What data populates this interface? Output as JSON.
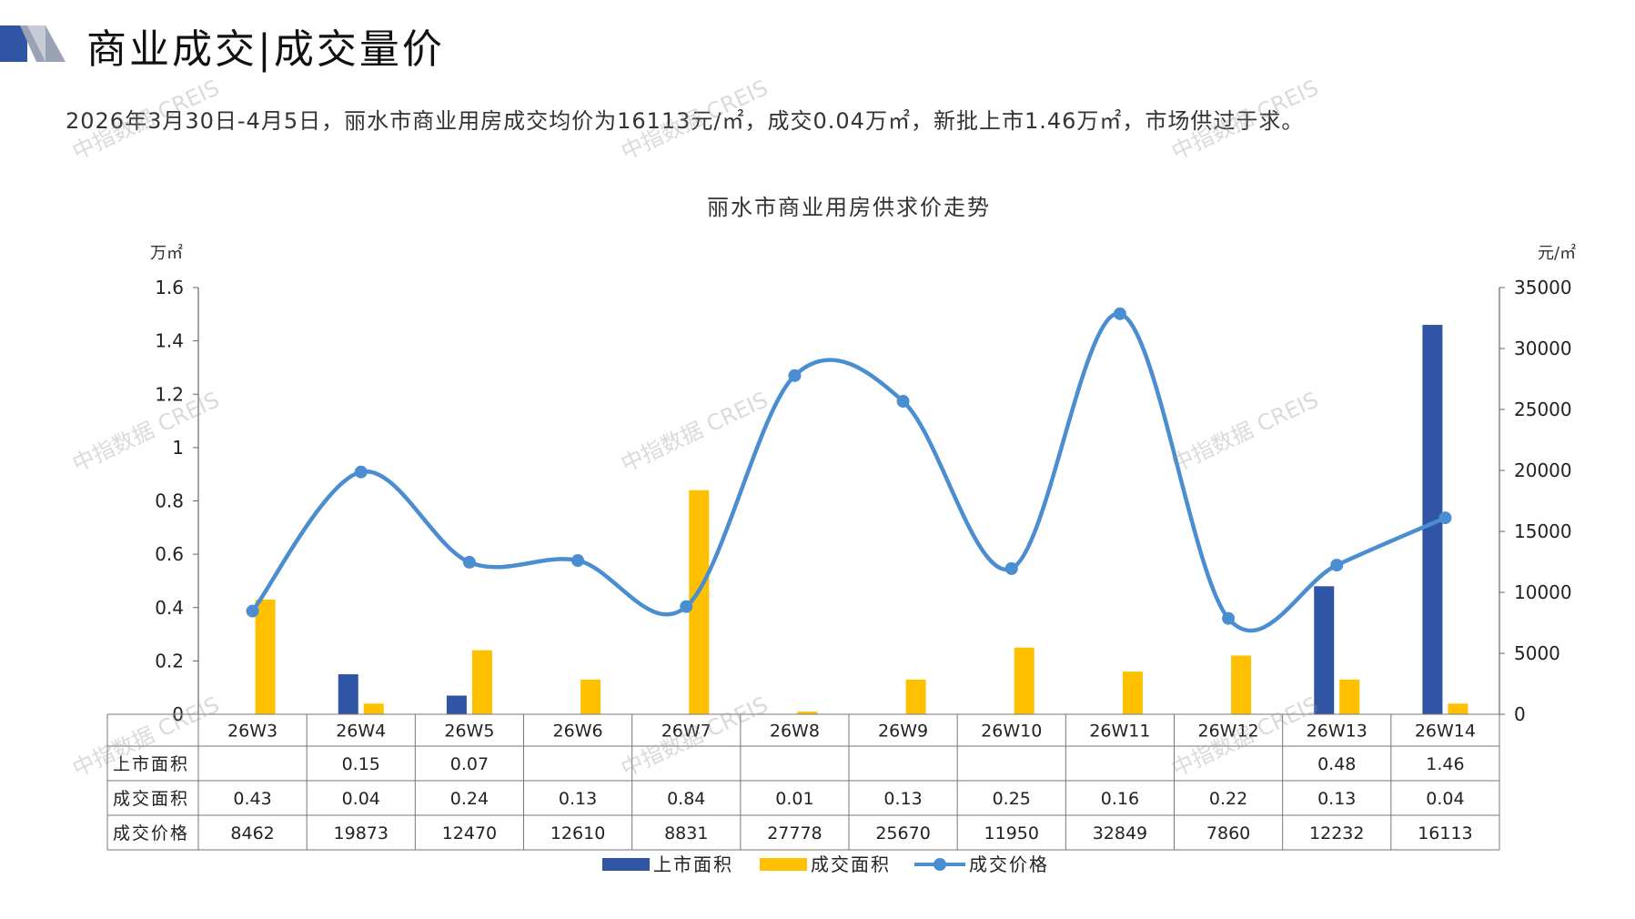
{
  "header": {
    "title": "商业成交|成交量价",
    "summary": "2026年3月30日-4月5日，丽水市商业用房成交均价为16113元/㎡，成交0.04万㎡，新批上市1.46万㎡，市场供过于求。"
  },
  "watermark": "中指数据 CREIS",
  "colors": {
    "supply": "#2f55a4",
    "transaction": "#ffc000",
    "price": "#4a8dd0",
    "logo_dark": "#2f55a4",
    "logo_gray": "#9aa3b3"
  },
  "chart_data": {
    "type": "bar",
    "title": "丽水市商业用房供求价走势",
    "categories": [
      "26W3",
      "26W4",
      "26W5",
      "26W6",
      "26W7",
      "26W8",
      "26W9",
      "26W10",
      "26W11",
      "26W12",
      "26W13",
      "26W14"
    ],
    "ylabel_left": "万㎡",
    "ylabel_right": "元/㎡",
    "y_left_range": [
      0,
      1.6
    ],
    "y_left_ticks": [
      "0",
      "0.2",
      "0.4",
      "0.6",
      "0.8",
      "1",
      "1.2",
      "1.4",
      "1.6"
    ],
    "y_right_range": [
      0,
      35000
    ],
    "y_right_ticks": [
      "0",
      "5000",
      "10000",
      "15000",
      "20000",
      "25000",
      "30000",
      "35000"
    ],
    "series": [
      {
        "name": "上市面积",
        "kind": "bar",
        "axis": "left",
        "values": [
          null,
          0.15,
          0.07,
          null,
          null,
          null,
          null,
          null,
          null,
          null,
          0.48,
          1.46
        ],
        "labels": [
          "",
          "0.15",
          "0.07",
          "",
          "",
          "",
          "",
          "",
          "",
          "",
          "0.48",
          "1.46"
        ]
      },
      {
        "name": "成交面积",
        "kind": "bar",
        "axis": "left",
        "values": [
          0.43,
          0.04,
          0.24,
          0.13,
          0.84,
          0.01,
          0.13,
          0.25,
          0.16,
          0.22,
          0.13,
          0.04
        ],
        "labels": [
          "0.43",
          "0.04",
          "0.24",
          "0.13",
          "0.84",
          "0.01",
          "0.13",
          "0.25",
          "0.16",
          "0.22",
          "0.13",
          "0.04"
        ]
      },
      {
        "name": "成交价格",
        "kind": "line",
        "axis": "right",
        "values": [
          8462,
          19873,
          12470,
          12610,
          8831,
          27778,
          25670,
          11950,
          32849,
          7860,
          12232,
          16113
        ],
        "labels": [
          "8462",
          "19873",
          "12470",
          "12610",
          "8831",
          "27778",
          "25670",
          "11950",
          "32849",
          "7860",
          "12232",
          "16113"
        ]
      }
    ],
    "grid": false,
    "legend_position": "bottom"
  }
}
